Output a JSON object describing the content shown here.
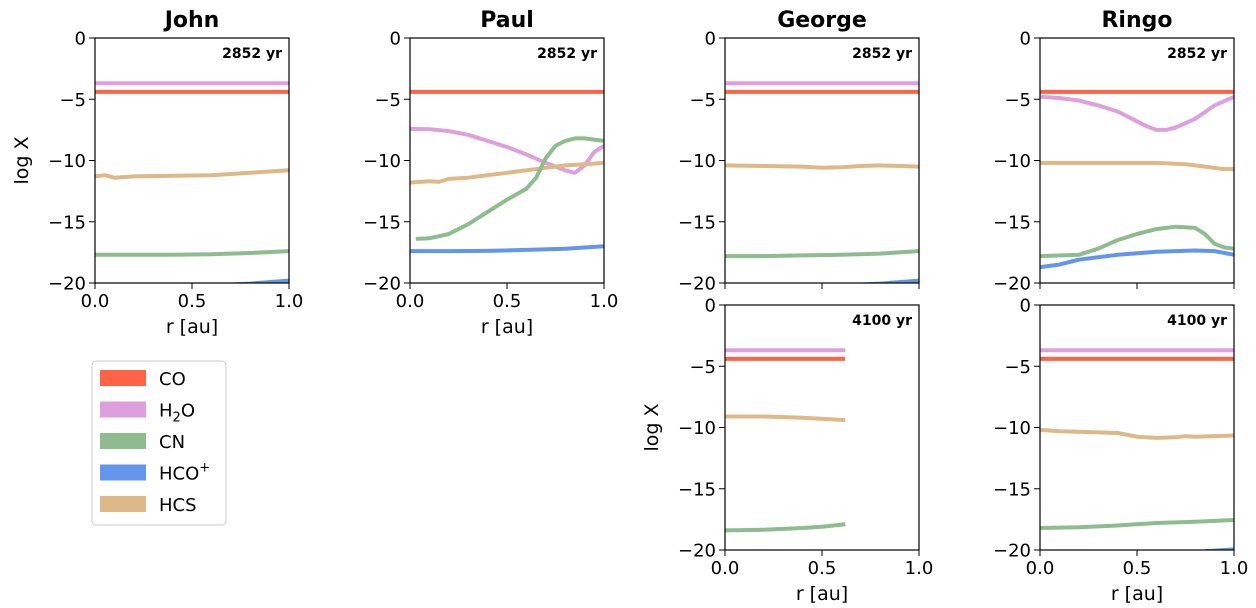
{
  "colors": {
    "CO": "#ff6347",
    "H2O": "#dda0dd",
    "CN": "#8fbc8f",
    "HCO+": "#6495ed",
    "HCS": "#deb887"
  },
  "legend": {
    "placement": "lower-left",
    "entries": [
      {
        "key": "CO",
        "base": "CO",
        "sub": "",
        "sup": ""
      },
      {
        "key": "H2O",
        "base": "H",
        "sub": "2",
        "sup": "",
        "tail": "O"
      },
      {
        "key": "CN",
        "base": "CN",
        "sub": "",
        "sup": ""
      },
      {
        "key": "HCO+",
        "base": "HCO",
        "sub": "",
        "sup": "+"
      },
      {
        "key": "HCS",
        "base": "HCS",
        "sub": "",
        "sup": ""
      }
    ]
  },
  "chart_data": [
    {
      "type": "line",
      "title": "John",
      "annotation": "2852 yr",
      "xlabel": "r [au]",
      "ylabel": "log X",
      "xlim": [
        0,
        1
      ],
      "ylim": [
        -20,
        0
      ],
      "xticks": [
        "0.0",
        "0.5",
        "1.0"
      ],
      "yticks": [
        "0",
        "-5",
        "-10",
        "-15",
        "-20"
      ],
      "series": [
        {
          "key": "H2O",
          "x": [
            0,
            1
          ],
          "y": [
            -3.7,
            -3.7
          ]
        },
        {
          "key": "CO",
          "x": [
            0,
            1
          ],
          "y": [
            -4.4,
            -4.4
          ]
        },
        {
          "key": "HCS",
          "x": [
            0,
            0.05,
            0.1,
            0.2,
            0.4,
            0.6,
            0.8,
            1.0
          ],
          "y": [
            -11.3,
            -11.2,
            -11.4,
            -11.3,
            -11.25,
            -11.2,
            -11.0,
            -10.8
          ]
        },
        {
          "key": "CN",
          "x": [
            0,
            0.2,
            0.4,
            0.6,
            0.8,
            1.0
          ],
          "y": [
            -17.7,
            -17.7,
            -17.7,
            -17.65,
            -17.55,
            -17.4
          ]
        },
        {
          "key": "HCO+",
          "x": [
            0.6,
            0.8,
            1.0
          ],
          "y": [
            -20.2,
            -20.05,
            -19.8
          ]
        }
      ]
    },
    {
      "type": "line",
      "title": "Paul",
      "annotation": "2852 yr",
      "xlabel": "r [au]",
      "ylabel": "",
      "xlim": [
        0,
        1
      ],
      "ylim": [
        -20,
        0
      ],
      "xticks": [
        "0.0",
        "0.5",
        "1.0"
      ],
      "yticks": [
        "0",
        "-5",
        "-10",
        "-15",
        "-20"
      ],
      "series": [
        {
          "key": "CO",
          "x": [
            0,
            1
          ],
          "y": [
            -4.4,
            -4.4
          ]
        },
        {
          "key": "H2O",
          "x": [
            0,
            0.1,
            0.2,
            0.3,
            0.4,
            0.5,
            0.6,
            0.7,
            0.8,
            0.85,
            0.9,
            0.95,
            1.0
          ],
          "y": [
            -7.4,
            -7.45,
            -7.6,
            -7.9,
            -8.4,
            -8.9,
            -9.5,
            -10.2,
            -10.8,
            -11.0,
            -10.4,
            -9.3,
            -8.8
          ]
        },
        {
          "key": "HCS",
          "x": [
            0,
            0.05,
            0.1,
            0.15,
            0.2,
            0.3,
            0.4,
            0.5,
            0.6,
            0.7,
            0.8,
            0.9,
            1.0
          ],
          "y": [
            -11.8,
            -11.75,
            -11.7,
            -11.75,
            -11.5,
            -11.4,
            -11.2,
            -11.0,
            -10.8,
            -10.6,
            -10.4,
            -10.3,
            -10.2
          ]
        },
        {
          "key": "CN",
          "x": [
            0.03,
            0.1,
            0.2,
            0.3,
            0.4,
            0.5,
            0.6,
            0.65,
            0.7,
            0.75,
            0.8,
            0.85,
            0.9,
            1.0
          ],
          "y": [
            -16.4,
            -16.35,
            -16.0,
            -15.2,
            -14.2,
            -13.2,
            -12.3,
            -11.4,
            -9.8,
            -8.8,
            -8.4,
            -8.2,
            -8.2,
            -8.4
          ]
        },
        {
          "key": "HCO+",
          "x": [
            0,
            0.2,
            0.4,
            0.6,
            0.8,
            1.0
          ],
          "y": [
            -17.4,
            -17.4,
            -17.38,
            -17.3,
            -17.2,
            -17.0
          ]
        }
      ]
    },
    {
      "type": "line",
      "title": "George",
      "annotation": "2852 yr",
      "xlabel": "",
      "ylabel": "",
      "xlim": [
        0,
        1
      ],
      "ylim": [
        -20,
        0
      ],
      "xticks": [],
      "yticks": [
        "0",
        "-5",
        "-10",
        "-15",
        "-20"
      ],
      "series": [
        {
          "key": "H2O",
          "x": [
            0,
            1
          ],
          "y": [
            -3.7,
            -3.7
          ]
        },
        {
          "key": "CO",
          "x": [
            0,
            1
          ],
          "y": [
            -4.4,
            -4.4
          ]
        },
        {
          "key": "HCS",
          "x": [
            0,
            0.2,
            0.4,
            0.5,
            0.6,
            0.7,
            0.8,
            1.0
          ],
          "y": [
            -10.4,
            -10.45,
            -10.5,
            -10.6,
            -10.55,
            -10.45,
            -10.4,
            -10.5
          ]
        },
        {
          "key": "CN",
          "x": [
            0,
            0.2,
            0.4,
            0.6,
            0.8,
            1.0
          ],
          "y": [
            -17.8,
            -17.8,
            -17.75,
            -17.7,
            -17.6,
            -17.4
          ]
        },
        {
          "key": "HCO+",
          "x": [
            0.6,
            0.8,
            1.0
          ],
          "y": [
            -20.2,
            -20.05,
            -19.8
          ]
        }
      ]
    },
    {
      "type": "line",
      "title": "Ringo",
      "annotation": "2852 yr",
      "xlabel": "",
      "ylabel": "",
      "xlim": [
        0,
        1
      ],
      "ylim": [
        -20,
        0
      ],
      "xticks": [],
      "yticks": [
        "0",
        "-5",
        "-10",
        "-15",
        "-20"
      ],
      "series": [
        {
          "key": "CO",
          "x": [
            0,
            1
          ],
          "y": [
            -4.4,
            -4.4
          ]
        },
        {
          "key": "H2O",
          "x": [
            0,
            0.1,
            0.2,
            0.3,
            0.4,
            0.5,
            0.55,
            0.6,
            0.65,
            0.7,
            0.8,
            0.9,
            1.0
          ],
          "y": [
            -4.8,
            -4.9,
            -5.1,
            -5.5,
            -6.0,
            -6.8,
            -7.2,
            -7.5,
            -7.5,
            -7.3,
            -6.6,
            -5.5,
            -4.8
          ]
        },
        {
          "key": "HCS",
          "x": [
            0,
            0.2,
            0.4,
            0.6,
            0.75,
            0.85,
            0.95,
            1.0
          ],
          "y": [
            -10.2,
            -10.2,
            -10.2,
            -10.2,
            -10.3,
            -10.5,
            -10.7,
            -10.7
          ]
        },
        {
          "key": "CN",
          "x": [
            0,
            0.2,
            0.3,
            0.4,
            0.5,
            0.6,
            0.7,
            0.8,
            0.85,
            0.9,
            0.95,
            1.0
          ],
          "y": [
            -17.8,
            -17.7,
            -17.2,
            -16.5,
            -16.0,
            -15.6,
            -15.4,
            -15.5,
            -16.0,
            -16.8,
            -17.1,
            -17.2
          ]
        },
        {
          "key": "HCO+",
          "x": [
            0,
            0.1,
            0.2,
            0.4,
            0.6,
            0.8,
            0.9,
            1.0
          ],
          "y": [
            -18.7,
            -18.5,
            -18.1,
            -17.7,
            -17.45,
            -17.35,
            -17.4,
            -17.7
          ]
        }
      ]
    },
    {
      "type": "line",
      "title": "",
      "annotation": "4100 yr",
      "xlabel": "r [au]",
      "ylabel": "log X",
      "xlim": [
        0,
        1
      ],
      "ylim": [
        -20,
        0
      ],
      "xticks": [
        "0.0",
        "0.5",
        "1.0"
      ],
      "yticks": [
        "0",
        "-5",
        "-10",
        "-15",
        "-20"
      ],
      "series": [
        {
          "key": "H2O",
          "x": [
            0,
            0.62
          ],
          "y": [
            -3.7,
            -3.7
          ]
        },
        {
          "key": "CO",
          "x": [
            0,
            0.62
          ],
          "y": [
            -4.4,
            -4.4
          ]
        },
        {
          "key": "HCS",
          "x": [
            0,
            0.2,
            0.4,
            0.62
          ],
          "y": [
            -9.1,
            -9.1,
            -9.2,
            -9.4
          ]
        },
        {
          "key": "CN",
          "x": [
            0,
            0.2,
            0.4,
            0.5,
            0.62
          ],
          "y": [
            -18.4,
            -18.35,
            -18.2,
            -18.1,
            -17.9
          ]
        }
      ]
    },
    {
      "type": "line",
      "title": "",
      "annotation": "4100 yr",
      "xlabel": "r [au]",
      "ylabel": "",
      "xlim": [
        0,
        1
      ],
      "ylim": [
        -20,
        0
      ],
      "xticks": [
        "0.0",
        "0.5",
        "1.0"
      ],
      "yticks": [
        "0",
        "-5",
        "-10",
        "-15",
        "-20"
      ],
      "series": [
        {
          "key": "H2O",
          "x": [
            0,
            1
          ],
          "y": [
            -3.7,
            -3.7
          ]
        },
        {
          "key": "CO",
          "x": [
            0,
            1
          ],
          "y": [
            -4.4,
            -4.4
          ]
        },
        {
          "key": "HCS",
          "x": [
            0,
            0.1,
            0.2,
            0.3,
            0.4,
            0.5,
            0.6,
            0.7,
            0.75,
            0.8,
            0.9,
            1.0
          ],
          "y": [
            -10.2,
            -10.3,
            -10.35,
            -10.4,
            -10.45,
            -10.75,
            -10.85,
            -10.8,
            -10.7,
            -10.75,
            -10.7,
            -10.65
          ]
        },
        {
          "key": "CN",
          "x": [
            0,
            0.2,
            0.4,
            0.6,
            0.8,
            1.0
          ],
          "y": [
            -18.2,
            -18.15,
            -18.0,
            -17.8,
            -17.7,
            -17.55
          ]
        },
        {
          "key": "HCO+",
          "x": [
            0.85,
            0.95,
            1.0
          ],
          "y": [
            -20.1,
            -20.0,
            -19.95
          ]
        }
      ]
    }
  ]
}
